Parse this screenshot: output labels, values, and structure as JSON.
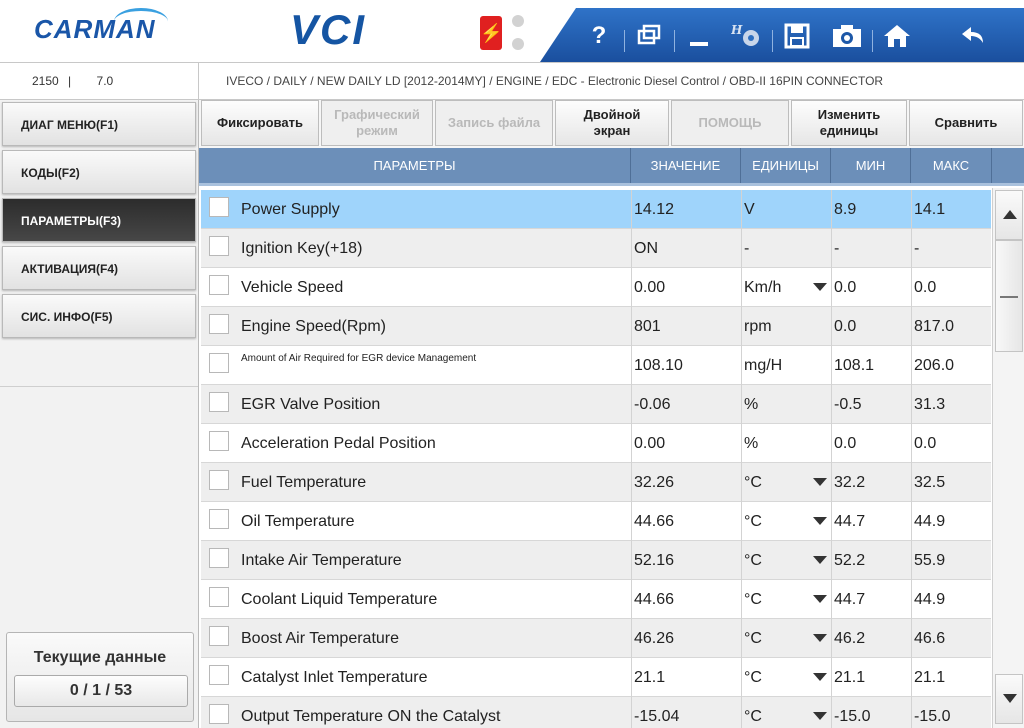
{
  "header": {
    "logo_text": "CARMAN",
    "product_text": "VCI",
    "usb_icon": "usb-icon",
    "toolbar_icons": [
      "help-icon",
      "window-icon",
      "minimize-icon",
      "settings-icon",
      "save-icon",
      "camera-icon",
      "home-icon",
      "back-icon"
    ],
    "help_label": "?",
    "accent_color": "#1a56a8"
  },
  "infobar": {
    "code": "2150",
    "separator": "|",
    "version": "7.0",
    "path": "IVECO / DAILY / NEW DAILY LD [2012-2014MY] / ENGINE / EDC - Electronic Diesel Control / OBD-II 16PIN CONNECTOR"
  },
  "sidebar": {
    "items": [
      {
        "label": "ДИАГ МЕНЮ(F1)"
      },
      {
        "label": "КОДЫ(F2)"
      },
      {
        "label": "ПАРАМЕТРЫ(F3)"
      },
      {
        "label": "АКТИВАЦИЯ(F4)"
      },
      {
        "label": "СИС. ИНФО(F5)"
      }
    ],
    "current_title": "Текущие данные",
    "current_count": "0 / 1 / 53"
  },
  "funcbar": {
    "buttons": [
      {
        "label": "Фиксировать"
      },
      {
        "label": "Графический режим"
      },
      {
        "label": "Запись файла"
      },
      {
        "label": "Двойной экран"
      },
      {
        "label": "ПОМОЩЬ"
      },
      {
        "label": "Изменить единицы"
      },
      {
        "label": "Сравнить"
      }
    ]
  },
  "table": {
    "headers": [
      "ПАРАМЕТРЫ",
      "ЗНАЧЕНИЕ",
      "ЕДИНИЦЫ",
      "МИН",
      "МАКС"
    ],
    "rows": [
      {
        "name": "Power Supply",
        "value": "14.12",
        "unit": "V",
        "min": "8.9",
        "max": "14.1"
      },
      {
        "name": "Ignition Key(+18)",
        "value": "ON",
        "unit": "-",
        "min": "-",
        "max": "-"
      },
      {
        "name": "Vehicle Speed",
        "value": "0.00",
        "unit": "Km/h",
        "min": "0.0",
        "max": "0.0"
      },
      {
        "name": "Engine Speed(Rpm)",
        "value": "801",
        "unit": "rpm",
        "min": "0.0",
        "max": "817.0"
      },
      {
        "name": "Amount of Air Required for EGR device Management",
        "value": "108.10",
        "unit": "mg/H",
        "min": "108.1",
        "max": "206.0"
      },
      {
        "name": "EGR Valve Position",
        "value": "-0.06",
        "unit": "%",
        "min": "-0.5",
        "max": "31.3"
      },
      {
        "name": "Acceleration Pedal Position",
        "value": "0.00",
        "unit": "%",
        "min": "0.0",
        "max": "0.0"
      },
      {
        "name": "Fuel Temperature",
        "value": "32.26",
        "unit": "°C",
        "min": "32.2",
        "max": "32.5"
      },
      {
        "name": "Oil Temperature",
        "value": "44.66",
        "unit": "°C",
        "min": "44.7",
        "max": "44.9"
      },
      {
        "name": "Intake Air Temperature",
        "value": "52.16",
        "unit": "°C",
        "min": "52.2",
        "max": "55.9"
      },
      {
        "name": "Coolant Liquid Temperature",
        "value": "44.66",
        "unit": "°C",
        "min": "44.7",
        "max": "44.9"
      },
      {
        "name": "Boost Air Temperature",
        "value": "46.26",
        "unit": "°C",
        "min": "46.2",
        "max": "46.6"
      },
      {
        "name": "Catalyst Inlet Temperature",
        "value": "21.1",
        "unit": "°C",
        "min": "21.1",
        "max": "21.1"
      },
      {
        "name": "Output Temperature ON the Catalyst",
        "value": "-15.04",
        "unit": "°C",
        "min": "-15.0",
        "max": "-15.0"
      }
    ]
  }
}
